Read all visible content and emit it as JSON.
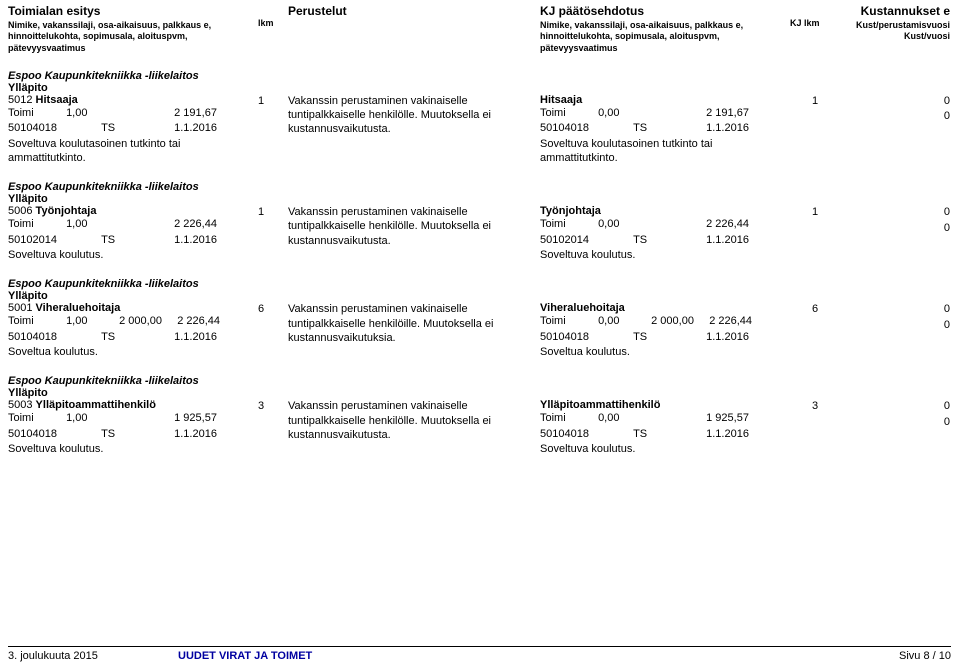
{
  "header": {
    "col1_title": "Toimialan esitys",
    "col1_sub": "Nimike, vakanssilaji, osa-aikaisuus, palkkaus e, hinnoittelukohta, sopimusala, aloituspvm, pätevyysvaatimus",
    "col2_title": "lkm",
    "col3_title": "Perustelut",
    "col4_title": "KJ päätösehdotus",
    "col4_sub": "Nimike, vakanssilaji, osa-aikaisuus, palkkaus e, hinnoittelukohta, sopimusala, aloituspvm, pätevyysvaatimus",
    "col5_title": "KJ lkm",
    "col6_title": "Kustannukset e",
    "col6_sub1": "Kust/perustamisvuosi",
    "col6_sub2": "Kust/vuosi"
  },
  "sections": [
    {
      "org": "Espoo Kaupunkitekniikka -liikelaitos",
      "unit": "Ylläpito",
      "left": {
        "id": "5012",
        "title": "Hitsaaja",
        "line1_a": "Toimi",
        "line1_b": "1,00",
        "line1_c": "2 191,67",
        "line2_a": "50104018",
        "line2_b": "TS",
        "line2_c": "1.1.2016",
        "note": "Soveltuva koulutasoinen tutkinto tai ammattitutkinto."
      },
      "lkm": "1",
      "rationale": "Vakanssin perustaminen vakinaiselle tuntipalkkaiselle henkilölle. Muutoksella ei kustannusvaikutusta.",
      "kj": {
        "title": "Hitsaaja",
        "line1_a": "Toimi",
        "line1_b": "0,00",
        "line1_c": "2 191,67",
        "line2_a": "50104018",
        "line2_b": "TS",
        "line2_c": "1.1.2016",
        "note": "Soveltuva koulutasoinen tutkinto tai ammattitutkinto."
      },
      "kjlkm": "1",
      "cost1": "0",
      "cost2": "0"
    },
    {
      "org": "Espoo Kaupunkitekniikka -liikelaitos",
      "unit": "Ylläpito",
      "left": {
        "id": "5006",
        "title": "Työnjohtaja",
        "line1_a": "Toimi",
        "line1_b": "1,00",
        "line1_c": "2 226,44",
        "line2_a": "50102014",
        "line2_b": "TS",
        "line2_c": "1.1.2016",
        "note": "Soveltuva koulutus."
      },
      "lkm": "1",
      "rationale": "Vakanssin perustaminen vakinaiselle tuntipalkkaiselle henkilölle. Muutoksella ei kustannusvaikutusta.",
      "kj": {
        "title": "Työnjohtaja",
        "line1_a": "Toimi",
        "line1_b": "0,00",
        "line1_c": "2 226,44",
        "line2_a": "50102014",
        "line2_b": "TS",
        "line2_c": "1.1.2016",
        "note": "Soveltuva koulutus."
      },
      "kjlkm": "1",
      "cost1": "0",
      "cost2": "0"
    },
    {
      "org": "Espoo Kaupunkitekniikka -liikelaitos",
      "unit": "Ylläpito",
      "left": {
        "id": "5001",
        "title": "Viheraluehoitaja",
        "line1_a": "Toimi",
        "line1_b": "1,00",
        "line1_mid": "2 000,00",
        "line1_c": "2 226,44",
        "line2_a": "50104018",
        "line2_b": "TS",
        "line2_c": "1.1.2016",
        "note": "Soveltua koulutus."
      },
      "lkm": "6",
      "rationale": "Vakanssin perustaminen vakinaiselle tuntipalkkaiselle henkilöille. Muutoksella ei kustannusvaikutuksia.",
      "kj": {
        "title": "Viheraluehoitaja",
        "line1_a": "Toimi",
        "line1_b": "0,00",
        "line1_mid": "2 000,00",
        "line1_c": "2 226,44",
        "line2_a": "50104018",
        "line2_b": "TS",
        "line2_c": "1.1.2016",
        "note": "Soveltua koulutus."
      },
      "kjlkm": "6",
      "cost1": "0",
      "cost2": "0"
    },
    {
      "org": "Espoo Kaupunkitekniikka -liikelaitos",
      "unit": "Ylläpito",
      "left": {
        "id": "5003",
        "title": "Ylläpitoammattihenkilö",
        "line1_a": "Toimi",
        "line1_b": "1,00",
        "line1_c": "1 925,57",
        "line2_a": "50104018",
        "line2_b": "TS",
        "line2_c": "1.1.2016",
        "note": "Soveltuva koulutus."
      },
      "lkm": "3",
      "rationale": "Vakanssin perustaminen vakinaiselle tuntipalkkaiselle henkilölle. Muutoksella ei kustannusvaikutusta.",
      "kj": {
        "title": "Ylläpitoammattihenkilö",
        "line1_a": "Toimi",
        "line1_b": "0,00",
        "line1_c": "1 925,57",
        "line2_a": "50104018",
        "line2_b": "TS",
        "line2_c": "1.1.2016",
        "note": "Soveltuva koulutus."
      },
      "kjlkm": "3",
      "cost1": "0",
      "cost2": "0"
    }
  ],
  "footer": {
    "left": "3. joulukuuta 2015",
    "center": "UUDET VIRAT JA TOIMET",
    "right": "Sivu 8 / 10"
  }
}
